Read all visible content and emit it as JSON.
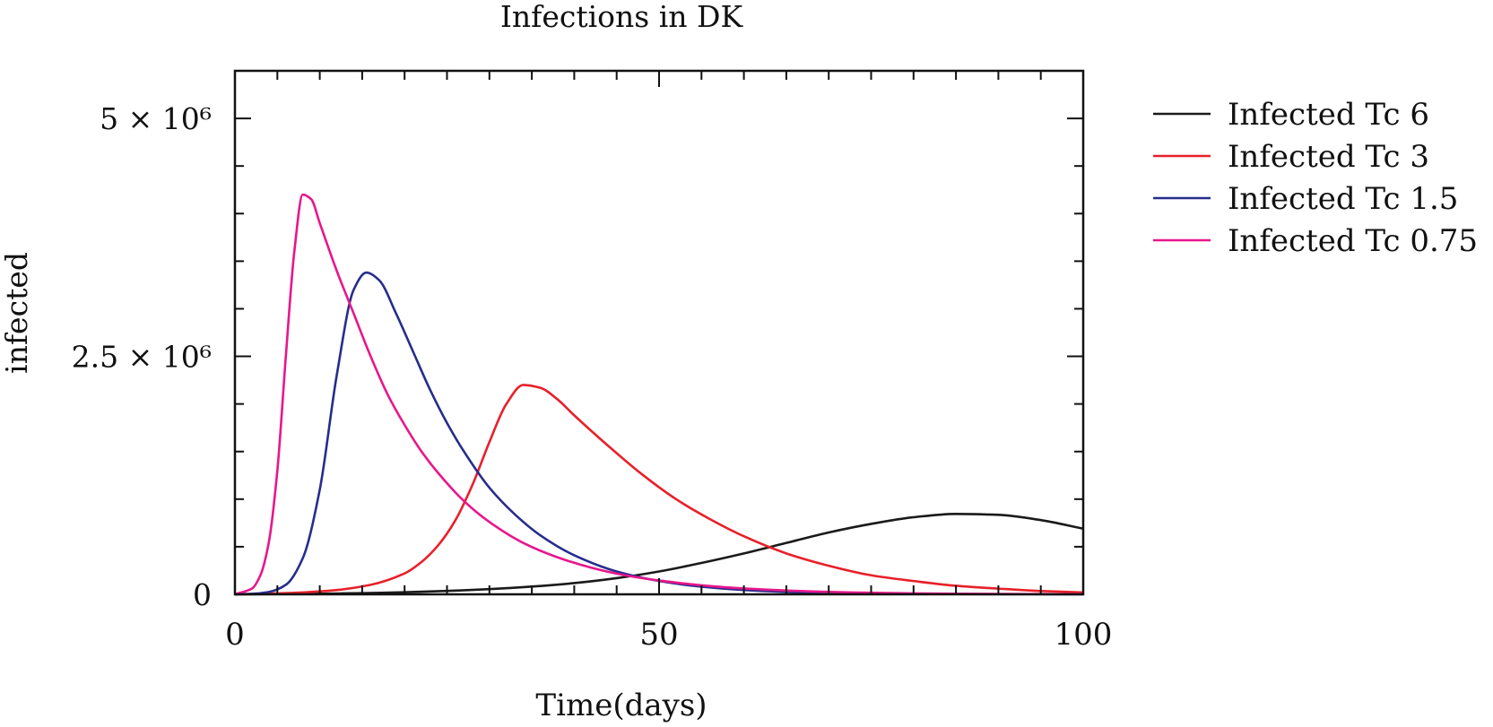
{
  "chart_data": {
    "type": "line",
    "title": "Infections in DK",
    "xlabel": "Time(days)",
    "ylabel": "infected",
    "xlim": [
      0,
      100
    ],
    "ylim": [
      0,
      5500000
    ],
    "grid": false,
    "legend_position": "outside right",
    "x_ticks": [
      {
        "value": 0,
        "label": "0"
      },
      {
        "value": 50,
        "label": "50"
      },
      {
        "value": 100,
        "label": "100"
      }
    ],
    "y_ticks": [
      {
        "value": 0,
        "label": "0"
      },
      {
        "value": 2500000,
        "label": "2.5 × 10⁶"
      },
      {
        "value": 5000000,
        "label": "5 × 10⁶"
      }
    ],
    "series": [
      {
        "name": "Infected Tc 6",
        "color": "#1a1a1a",
        "x": [
          0,
          5,
          10,
          15,
          20,
          25,
          30,
          35,
          40,
          45,
          50,
          55,
          60,
          65,
          70,
          75,
          80,
          85,
          90,
          95,
          100
        ],
        "y": [
          0,
          3000,
          7000,
          13000,
          22000,
          36000,
          55000,
          82000,
          118000,
          170000,
          240000,
          330000,
          430000,
          540000,
          650000,
          740000,
          810000,
          845000,
          835000,
          780000,
          690000
        ]
      },
      {
        "name": "Infected Tc 3",
        "color": "#e8202a",
        "x": [
          0,
          4,
          8,
          12,
          16,
          20,
          22,
          24,
          26,
          28,
          30,
          32,
          34,
          36,
          38,
          40,
          44,
          48,
          52,
          56,
          60,
          65,
          70,
          75,
          80,
          85,
          90,
          95,
          100
        ],
        "y": [
          0,
          8000,
          20000,
          45000,
          100000,
          220000,
          340000,
          520000,
          780000,
          1150000,
          1600000,
          2000000,
          2200000,
          2170000,
          2050000,
          1880000,
          1560000,
          1260000,
          1000000,
          790000,
          610000,
          430000,
          300000,
          200000,
          140000,
          90000,
          60000,
          35000,
          20000
        ]
      },
      {
        "name": "Infected Tc 1.5",
        "color": "#262d8c",
        "x": [
          0,
          2,
          4,
          6,
          8,
          10,
          12,
          14,
          15.5,
          17,
          19,
          21,
          23,
          25,
          27,
          30,
          33,
          36,
          40,
          45,
          50,
          55,
          60,
          65,
          70,
          80,
          90,
          100
        ],
        "y": [
          0,
          5000,
          25000,
          100000,
          380000,
          1100000,
          2300000,
          3200000,
          3380000,
          3300000,
          2950000,
          2550000,
          2150000,
          1800000,
          1500000,
          1120000,
          840000,
          620000,
          410000,
          240000,
          140000,
          80000,
          45000,
          25000,
          14000,
          5000,
          2000,
          1000
        ]
      },
      {
        "name": "Infected Tc 0.75",
        "color": "#e8168c",
        "x": [
          0,
          2,
          3,
          4,
          5,
          6,
          7,
          8,
          9,
          10,
          12,
          14,
          16,
          18,
          20,
          22,
          24,
          27,
          30,
          34,
          38,
          42,
          46,
          50,
          55,
          60,
          70,
          80,
          90,
          100
        ],
        "y": [
          0,
          60000,
          200000,
          550000,
          1300000,
          2500000,
          3600000,
          4200000,
          4150000,
          3900000,
          3400000,
          2950000,
          2500000,
          2100000,
          1780000,
          1500000,
          1270000,
          980000,
          760000,
          540000,
          390000,
          280000,
          200000,
          145000,
          95000,
          62000,
          25000,
          10000,
          4000,
          1500
        ]
      }
    ]
  }
}
